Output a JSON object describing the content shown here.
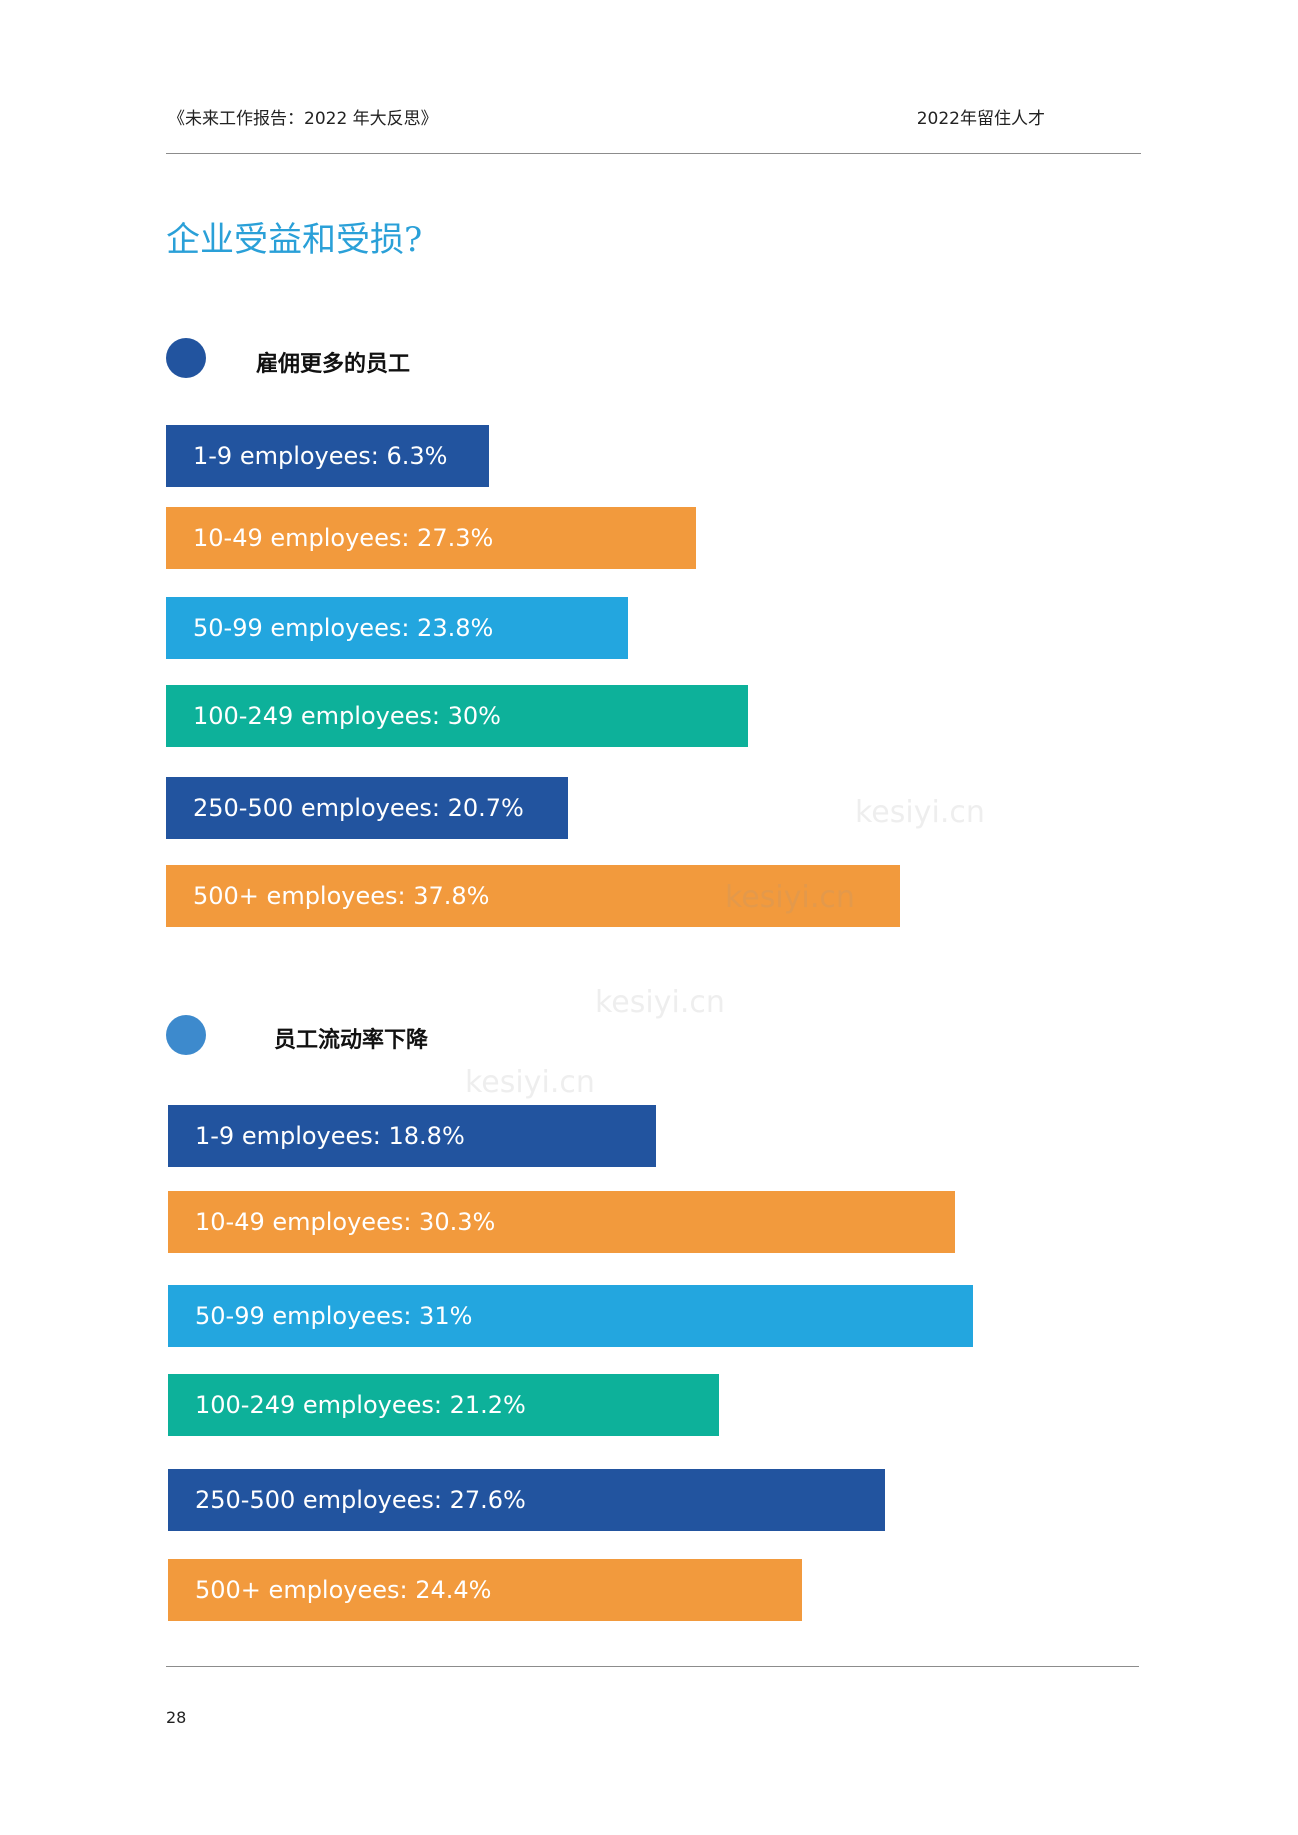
{
  "header": {
    "left": "《未来工作报告：2022 年大反思》",
    "right": "2022年留住人才"
  },
  "page_title": "企业受益和受损?",
  "colors": {
    "dark_blue": "#22549f",
    "orange": "#f29a3d",
    "light_blue": "#23a6df",
    "teal": "#0db19a",
    "title_blue": "#2aa0d8"
  },
  "sections": [
    {
      "label": "雇佣更多的员工",
      "dot_color": "#22549f"
    },
    {
      "label": "员工流动率下降",
      "dot_color": "#3d8acd"
    }
  ],
  "chart_data": [
    {
      "type": "bar",
      "orientation": "horizontal",
      "categories": [
        "1-9 employees",
        "10-49 employees",
        "50-99 employees",
        "100-249 employees",
        "250-500 employees",
        "500+ employees"
      ],
      "values": [
        6.3,
        27.3,
        23.8,
        30,
        20.7,
        37.8
      ],
      "labels": [
        "1-9 employees: 6.3%",
        "10-49 employees: 27.3%",
        "50-99 employees: 23.8%",
        "100-249 employees: 30%",
        "250-500 employees: 20.7%",
        "500+ employees: 37.8%"
      ],
      "colors": [
        "#22549f",
        "#f29a3d",
        "#23a6df",
        "#0db19a",
        "#22549f",
        "#f29a3d"
      ],
      "grid": false
    },
    {
      "type": "bar",
      "orientation": "horizontal",
      "categories": [
        "1-9 employees",
        "10-49 employees",
        "50-99 employees",
        "100-249 employees",
        "250-500 employees",
        "500+ employees"
      ],
      "values": [
        18.8,
        30.3,
        31,
        21.2,
        27.6,
        24.4
      ],
      "labels": [
        "1-9 employees: 18.8%",
        "10-49 employees: 30.3%",
        "50-99 employees: 31%",
        "100-249 employees: 21.2%",
        "250-500 employees: 27.6%",
        "500+ employees: 24.4%"
      ],
      "colors": [
        "#22549f",
        "#f29a3d",
        "#23a6df",
        "#0db19a",
        "#22549f",
        "#f29a3d"
      ],
      "grid": false
    }
  ],
  "watermark": "kesiyi.cn",
  "page_number": "28"
}
